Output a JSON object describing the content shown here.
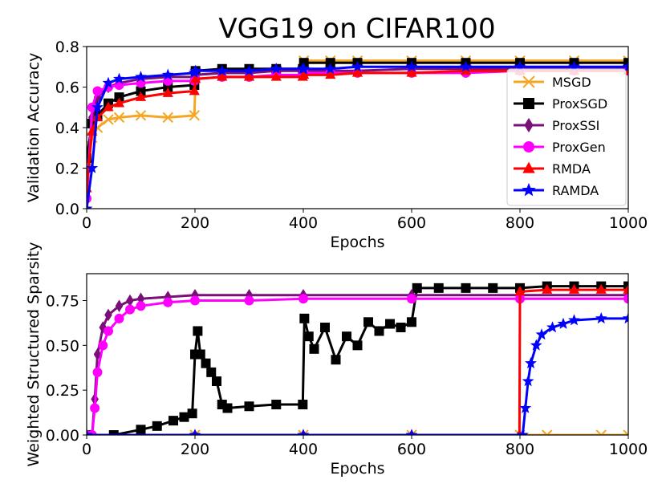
{
  "title": "VGG19 on CIFAR100",
  "legend": {
    "placement": "bottom-right",
    "entries": [
      {
        "label": "MSGD",
        "color": "#f5a623",
        "marker": "x"
      },
      {
        "label": "ProxSGD",
        "color": "#000000",
        "marker": "square"
      },
      {
        "label": "ProxSSI",
        "color": "#7a0f7a",
        "marker": "diamond"
      },
      {
        "label": "ProxGen",
        "color": "#ff00ff",
        "marker": "circle"
      },
      {
        "label": "RMDA",
        "color": "#ff0000",
        "marker": "triangle"
      },
      {
        "label": "RAMDA",
        "color": "#0000ff",
        "marker": "star"
      }
    ]
  },
  "chart_data": [
    {
      "type": "line",
      "xlabel": "Epochs",
      "ylabel": "Validation Accuracy",
      "xlim": [
        0,
        1000
      ],
      "ylim": [
        0,
        0.8
      ],
      "xticks": [
        "0",
        "200",
        "400",
        "600",
        "800",
        "1000"
      ],
      "yticks": [
        "0.0",
        "0.2",
        "0.4",
        "0.6",
        "0.8"
      ],
      "legend_placement": "bottom-right",
      "series": [
        {
          "name": "MSGD",
          "color": "#f5a623",
          "marker": "x",
          "x": [
            0,
            10,
            20,
            40,
            60,
            100,
            150,
            199,
            201,
            250,
            300,
            350,
            399,
            401,
            450,
            500,
            600,
            700,
            800,
            900,
            1000
          ],
          "y": [
            0.2,
            0.35,
            0.4,
            0.44,
            0.45,
            0.46,
            0.45,
            0.46,
            0.66,
            0.67,
            0.67,
            0.68,
            0.68,
            0.73,
            0.73,
            0.73,
            0.73,
            0.73,
            0.73,
            0.73,
            0.73
          ]
        },
        {
          "name": "ProxSGD",
          "color": "#000000",
          "marker": "square",
          "x": [
            0,
            10,
            20,
            40,
            60,
            100,
            150,
            199,
            201,
            250,
            300,
            350,
            399,
            401,
            450,
            500,
            600,
            700,
            800,
            900,
            1000
          ],
          "y": [
            0.25,
            0.42,
            0.46,
            0.52,
            0.55,
            0.58,
            0.6,
            0.61,
            0.68,
            0.69,
            0.69,
            0.69,
            0.69,
            0.72,
            0.72,
            0.72,
            0.72,
            0.72,
            0.72,
            0.72,
            0.72
          ]
        },
        {
          "name": "ProxSSI",
          "color": "#7a0f7a",
          "marker": "diamond",
          "x": [
            0,
            10,
            20,
            40,
            60,
            100,
            150,
            199,
            201,
            250,
            300,
            350,
            399,
            401,
            450,
            500,
            600,
            700,
            800,
            900,
            1000
          ],
          "y": [
            0.05,
            0.45,
            0.55,
            0.6,
            0.62,
            0.64,
            0.65,
            0.65,
            0.66,
            0.67,
            0.67,
            0.68,
            0.68,
            0.68,
            0.68,
            0.68,
            0.69,
            0.69,
            0.69,
            0.69,
            0.69
          ]
        },
        {
          "name": "ProxGen",
          "color": "#ff00ff",
          "marker": "circle",
          "x": [
            0,
            10,
            20,
            40,
            60,
            100,
            150,
            199,
            201,
            250,
            300,
            350,
            399,
            401,
            450,
            500,
            600,
            700,
            800,
            900,
            1000
          ],
          "y": [
            0.05,
            0.5,
            0.58,
            0.6,
            0.61,
            0.62,
            0.63,
            0.63,
            0.64,
            0.65,
            0.65,
            0.66,
            0.66,
            0.67,
            0.67,
            0.67,
            0.67,
            0.67,
            0.68,
            0.68,
            0.68
          ]
        },
        {
          "name": "RMDA",
          "color": "#ff0000",
          "marker": "triangle",
          "x": [
            0,
            10,
            20,
            40,
            60,
            100,
            150,
            199,
            201,
            250,
            300,
            350,
            399,
            401,
            450,
            500,
            600,
            700,
            800,
            900,
            1000
          ],
          "y": [
            0.1,
            0.38,
            0.45,
            0.5,
            0.52,
            0.55,
            0.57,
            0.58,
            0.64,
            0.65,
            0.65,
            0.65,
            0.65,
            0.66,
            0.66,
            0.67,
            0.67,
            0.68,
            0.68,
            0.68,
            0.68
          ]
        },
        {
          "name": "RAMDA",
          "color": "#0000ff",
          "marker": "star",
          "x": [
            0,
            10,
            20,
            40,
            60,
            100,
            150,
            199,
            201,
            250,
            300,
            350,
            399,
            401,
            450,
            500,
            600,
            700,
            800,
            900,
            1000
          ],
          "y": [
            0.0,
            0.2,
            0.5,
            0.62,
            0.64,
            0.65,
            0.66,
            0.67,
            0.68,
            0.68,
            0.68,
            0.69,
            0.69,
            0.69,
            0.69,
            0.7,
            0.7,
            0.7,
            0.7,
            0.7,
            0.7
          ]
        }
      ]
    },
    {
      "type": "line",
      "xlabel": "Epochs",
      "ylabel": "Weighted Structured Sparsity",
      "xlim": [
        0,
        1000
      ],
      "ylim": [
        0,
        0.9
      ],
      "xticks": [
        "0",
        "200",
        "400",
        "600",
        "800",
        "1000"
      ],
      "yticks": [
        "0.00",
        "0.25",
        "0.50",
        "0.75"
      ],
      "series": [
        {
          "name": "MSGD",
          "color": "#f5a623",
          "marker": "x",
          "x": [
            0,
            200,
            400,
            600,
            800,
            850,
            950,
            1000
          ],
          "y": [
            0,
            0,
            0,
            0,
            0,
            0,
            0,
            0
          ]
        },
        {
          "name": "ProxSGD",
          "color": "#000000",
          "marker": "square",
          "x": [
            0,
            50,
            100,
            130,
            160,
            180,
            195,
            200,
            205,
            210,
            220,
            230,
            240,
            250,
            260,
            300,
            350,
            399,
            402,
            410,
            420,
            440,
            460,
            480,
            500,
            520,
            540,
            560,
            580,
            600,
            610,
            650,
            700,
            750,
            800,
            850,
            900,
            950,
            1000
          ],
          "y": [
            0,
            0,
            0.03,
            0.05,
            0.08,
            0.1,
            0.12,
            0.45,
            0.58,
            0.45,
            0.4,
            0.35,
            0.3,
            0.17,
            0.15,
            0.16,
            0.17,
            0.17,
            0.65,
            0.55,
            0.48,
            0.6,
            0.42,
            0.55,
            0.5,
            0.63,
            0.58,
            0.62,
            0.6,
            0.63,
            0.82,
            0.82,
            0.82,
            0.82,
            0.82,
            0.83,
            0.83,
            0.83,
            0.83
          ]
        },
        {
          "name": "ProxSSI",
          "color": "#7a0f7a",
          "marker": "diamond",
          "x": [
            0,
            10,
            15,
            20,
            30,
            40,
            60,
            80,
            100,
            150,
            200,
            300,
            400,
            600,
            800,
            1000
          ],
          "y": [
            0,
            0,
            0.2,
            0.45,
            0.6,
            0.67,
            0.72,
            0.75,
            0.76,
            0.77,
            0.78,
            0.78,
            0.78,
            0.78,
            0.78,
            0.78
          ]
        },
        {
          "name": "ProxGen",
          "color": "#ff00ff",
          "marker": "circle",
          "x": [
            0,
            10,
            15,
            20,
            30,
            40,
            60,
            80,
            100,
            150,
            200,
            300,
            400,
            600,
            800,
            1000
          ],
          "y": [
            0,
            0,
            0.15,
            0.35,
            0.5,
            0.58,
            0.65,
            0.7,
            0.72,
            0.74,
            0.75,
            0.75,
            0.76,
            0.76,
            0.76,
            0.76
          ]
        },
        {
          "name": "RMDA",
          "color": "#ff0000",
          "marker": "triangle",
          "x": [
            0,
            200,
            400,
            600,
            799,
            800,
            850,
            900,
            950,
            1000
          ],
          "y": [
            0,
            0,
            0,
            0,
            0,
            0.8,
            0.81,
            0.81,
            0.81,
            0.81
          ]
        },
        {
          "name": "RAMDA",
          "color": "#0000ff",
          "marker": "star",
          "x": [
            0,
            200,
            400,
            600,
            805,
            810,
            815,
            820,
            830,
            840,
            860,
            880,
            900,
            950,
            1000
          ],
          "y": [
            0,
            0,
            0,
            0,
            0,
            0.15,
            0.3,
            0.4,
            0.5,
            0.56,
            0.6,
            0.62,
            0.64,
            0.65,
            0.65
          ]
        }
      ]
    }
  ]
}
